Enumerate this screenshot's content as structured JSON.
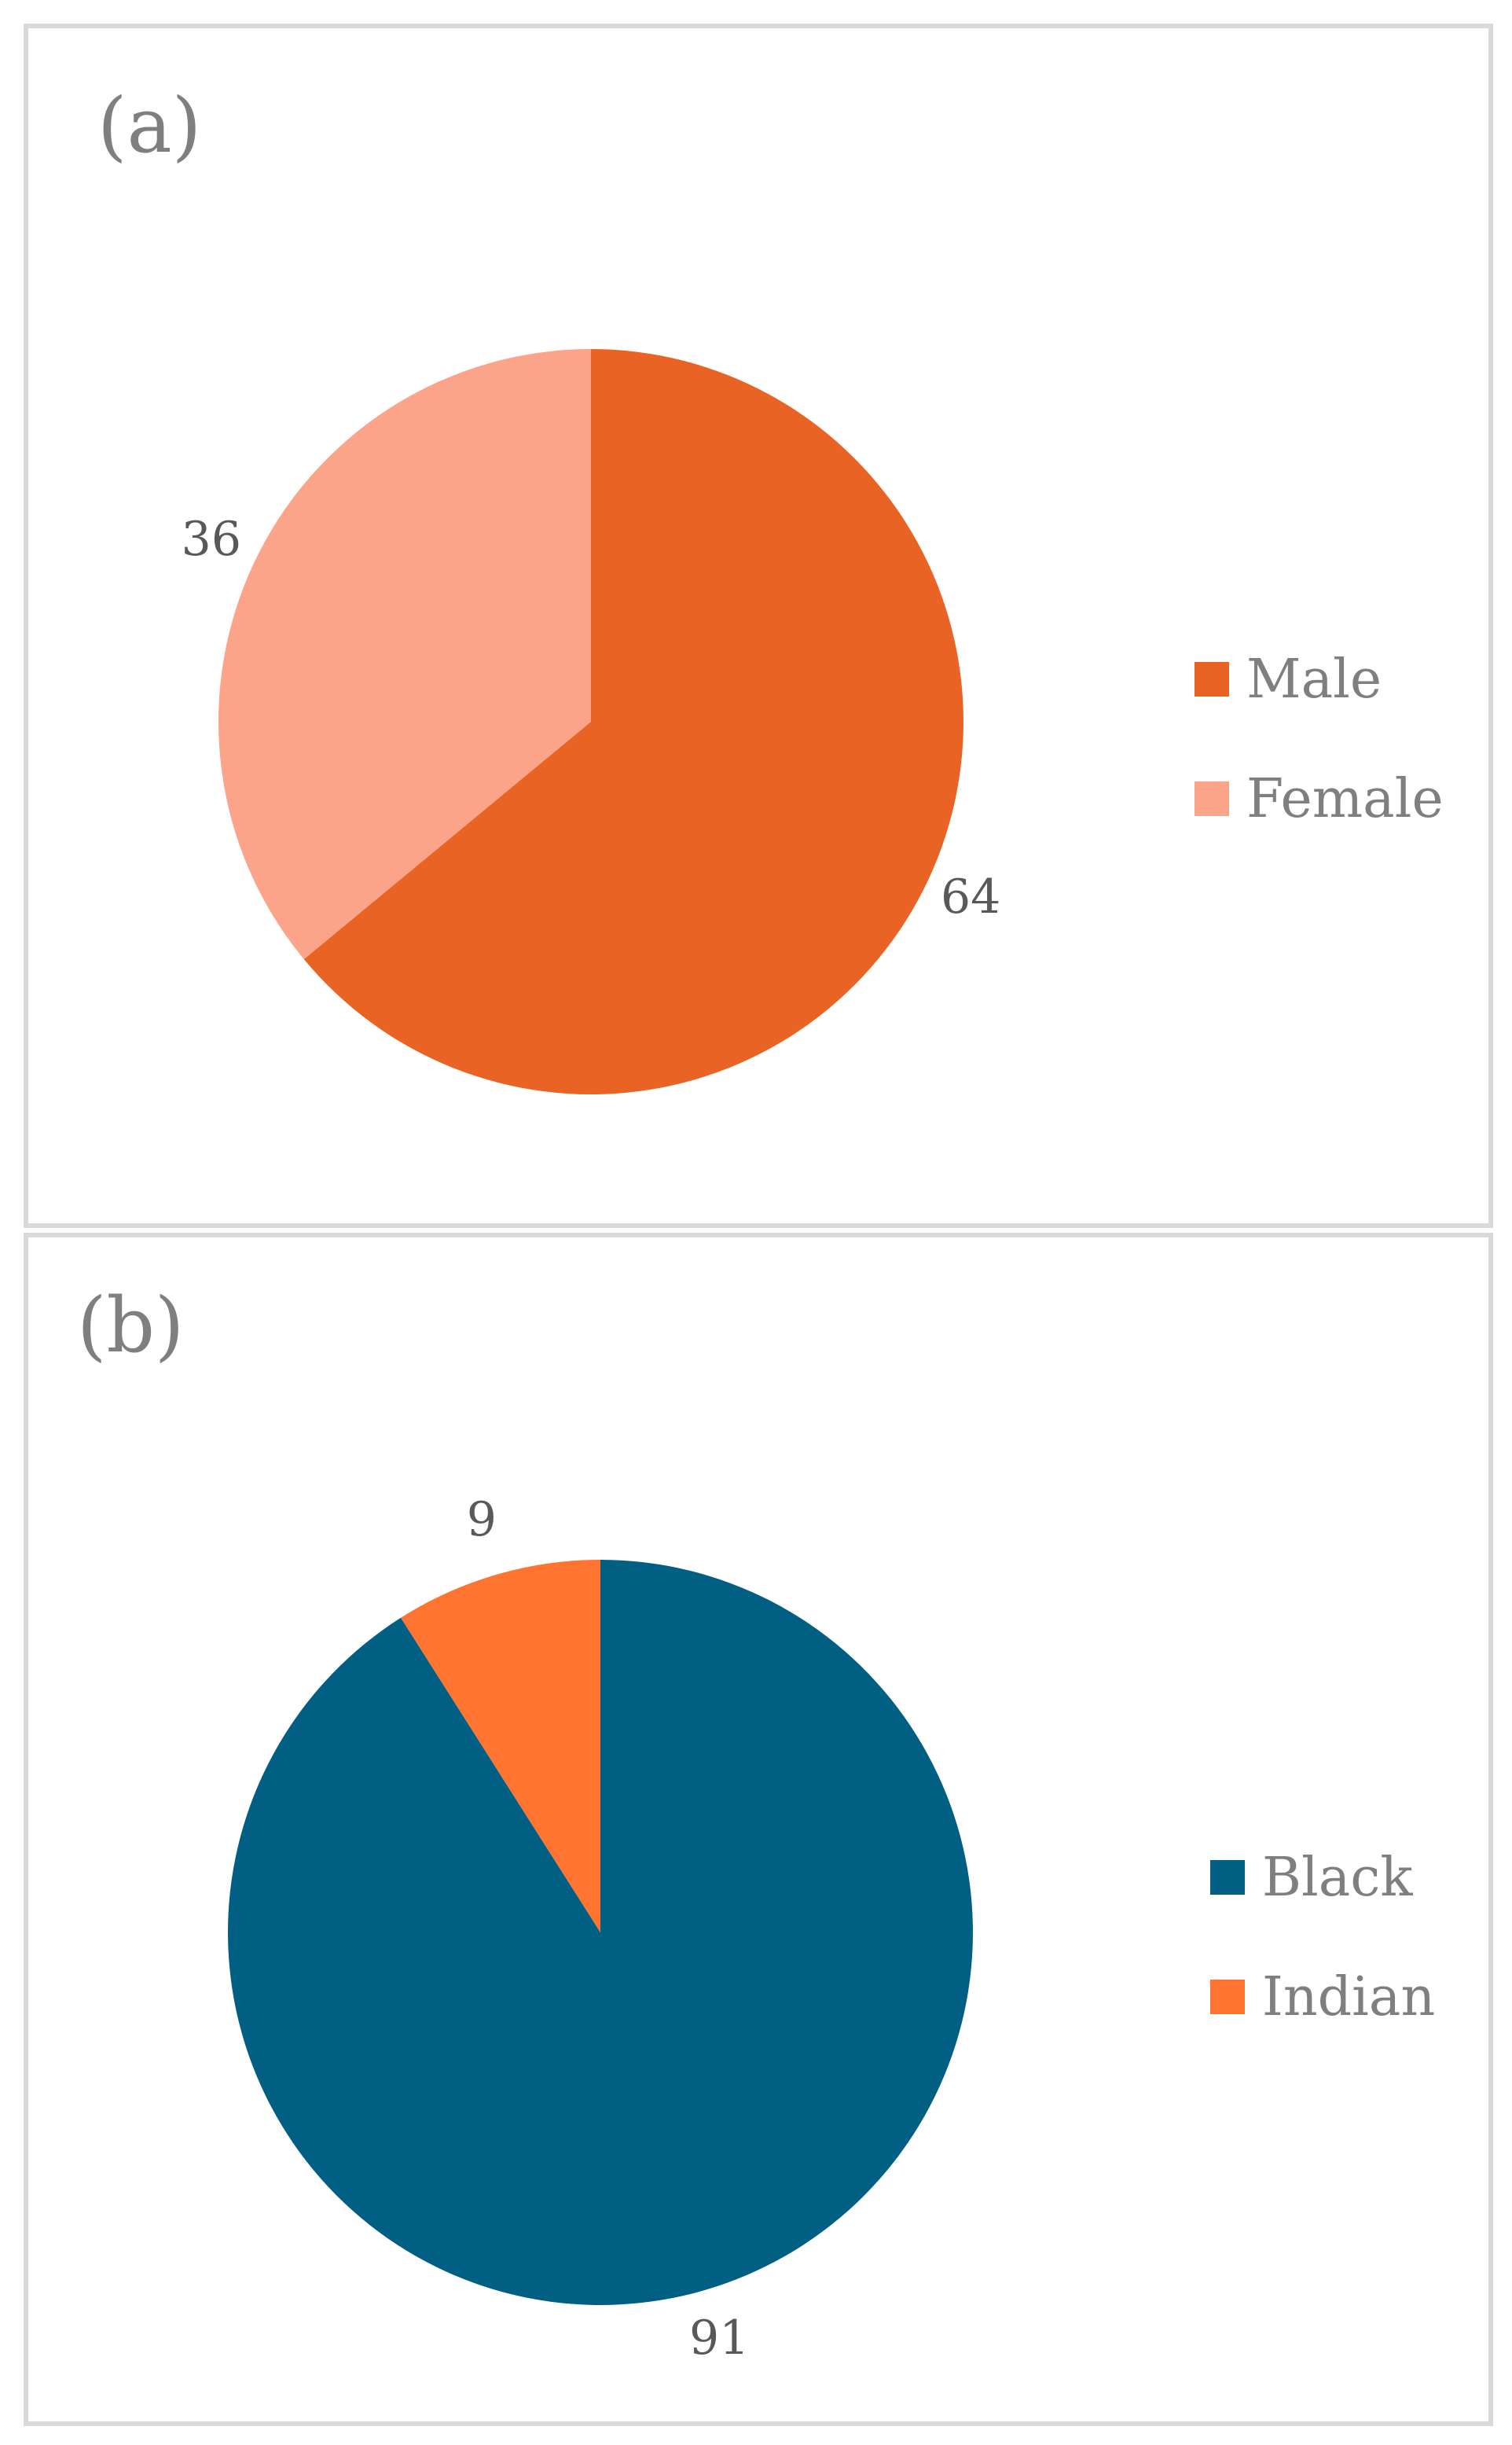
{
  "chart_data": [
    {
      "type": "pie",
      "panel_label": "(a)",
      "categories": [
        "Male",
        "Female"
      ],
      "values": [
        64,
        36
      ],
      "colors": [
        "#E96424",
        "#FBA48A"
      ],
      "data_labels": [
        "64",
        "36"
      ],
      "legend": [
        "Male",
        "Female"
      ],
      "legend_position": "right",
      "start": "top, clockwise"
    },
    {
      "type": "pie",
      "panel_label": "(b)",
      "categories": [
        "Black",
        "Indian"
      ],
      "values": [
        91,
        9
      ],
      "colors": [
        "#005F82",
        "#FF7431"
      ],
      "data_labels": [
        "91",
        "9"
      ],
      "legend": [
        "Black",
        "Indian"
      ],
      "legend_position": "right",
      "start": "top, clockwise"
    }
  ]
}
